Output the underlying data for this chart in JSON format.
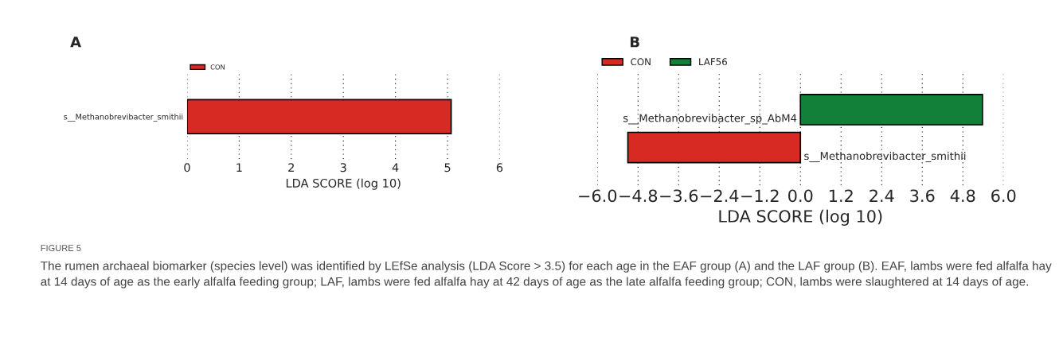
{
  "chart_data": [
    {
      "type": "bar",
      "title": "A",
      "orientation": "horizontal",
      "categories": [
        "s__Methanobrevibacter_smithii"
      ],
      "series": [
        {
          "name": "CON",
          "color": "#d62a22",
          "values": [
            5.07
          ]
        }
      ],
      "xlim": [
        0,
        6
      ],
      "xticks": [
        0,
        1,
        2,
        3,
        4,
        5,
        6
      ],
      "xlabel": "LDA SCORE (log 10)",
      "grid": "x",
      "legend": "top left",
      "annotations": [
        "FIGURE 5",
        "The rumen archaeal biomarker (species level) was identified by LEfSe analysis (LDA Score > 3.5) for each age in the EAF group (A) and the LAF group (B). EAF, lambs were fed alfalfa hay at 14 days of age as the early alfalfa feeding group; LAF, lambs were fed alfalfa hay at 42 days of age as the late alfalfa feeding group; CON, lambs were slaughtered at 14 days of age."
      ]
    },
    {
      "type": "bar",
      "title": "B",
      "orientation": "horizontal",
      "categories": [
        "s__Methanobrevibacter_sp_AbM4",
        "s__Methanobrevibacter_smithii"
      ],
      "series": [
        {
          "name": "CON",
          "color": "#d62a22",
          "values": [
            null,
            -5.1
          ]
        },
        {
          "name": "LAF56",
          "color": "#138039",
          "values": [
            5.38,
            null
          ]
        }
      ],
      "xlim": [
        -6.0,
        6.0
      ],
      "xticks": [
        {
          "value": -6.0,
          "label": "−6.0"
        },
        {
          "value": -4.8,
          "label": "−4.8"
        },
        {
          "value": -3.6,
          "label": "−3.6"
        },
        {
          "value": -2.4,
          "label": "−2.4"
        },
        {
          "value": -1.2,
          "label": "−1.2"
        },
        {
          "value": 0.0,
          "label": "0.0"
        },
        1.2,
        2.4,
        3.6,
        4.8,
        {
          "value": 6.0,
          "label": "6.0"
        }
      ],
      "xlabel": "LDA SCORE (log 10)",
      "grid": "x",
      "legend": "top left"
    }
  ]
}
